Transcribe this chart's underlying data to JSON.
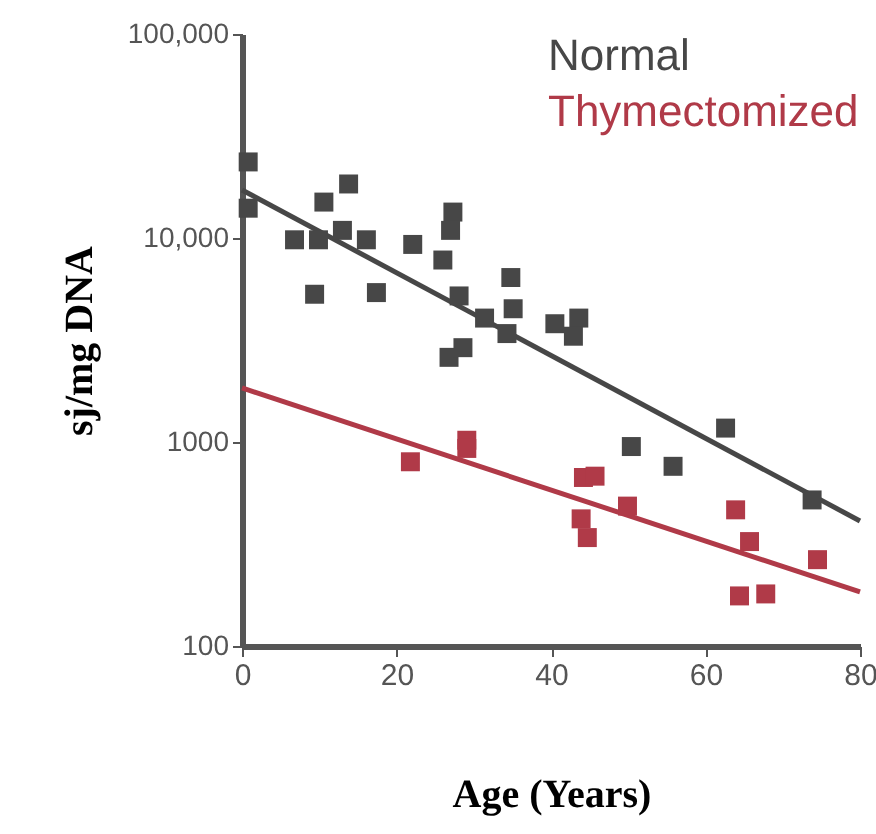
{
  "chart_data": {
    "type": "scatter",
    "xlabel": "Age (Years)",
    "ylabel": "sj/mg DNA",
    "log": "y",
    "legend": "top right",
    "grid": false,
    "xlim": [
      0,
      80
    ],
    "xticks": [
      0,
      20,
      40,
      60,
      80
    ],
    "ylim": [
      100,
      100000
    ],
    "yticks": [
      {
        "value": 100,
        "label": "100"
      },
      {
        "value": 1000,
        "label": "1000"
      },
      {
        "value": 10000,
        "label": "10,000"
      },
      {
        "value": 100000,
        "label": "100,000"
      }
    ],
    "series": [
      {
        "name": "Normal",
        "color": "#474747",
        "marker": "square",
        "x": [
          0.8,
          0.8,
          6.8,
          9.9,
          10.6,
          13.8,
          13,
          16.1,
          9.4,
          17.4,
          22.1,
          26,
          27.3,
          27,
          28.1,
          31.4,
          34.3,
          34.8,
          35.1,
          26.8,
          28.6,
          40.5,
          43.6,
          42.9,
          62.6,
          50.4,
          55.8,
          73.8
        ],
        "values": [
          23600,
          14000,
          9800,
          9800,
          15000,
          18400,
          10900,
          9800,
          5300,
          5400,
          9300,
          7800,
          13400,
          10900,
          5200,
          4050,
          3400,
          6400,
          4500,
          2600,
          2900,
          3800,
          4050,
          3300,
          1170,
          950,
          760,
          520
        ]
      },
      {
        "name": "Thymectomized",
        "color": "#b03a48",
        "marker": "square",
        "x": [
          21.8,
          29.1,
          29.1,
          44.2,
          45.7,
          43.9,
          44.7,
          49.9,
          63.9,
          65.7,
          74.5,
          64.4,
          67.8
        ],
        "values": [
          800,
          1020,
          930,
          670,
          680,
          420,
          340,
          485,
          465,
          325,
          265,
          176,
          180
        ]
      },
      {
        "type": "line",
        "marker": "none",
        "color": "#474747",
        "x": [
          0,
          80
        ],
        "values": [
          17200,
          410
        ]
      },
      {
        "type": "line",
        "marker": "none",
        "color": "#b03a48",
        "x": [
          0,
          80
        ],
        "values": [
          1840,
          184
        ]
      }
    ]
  }
}
